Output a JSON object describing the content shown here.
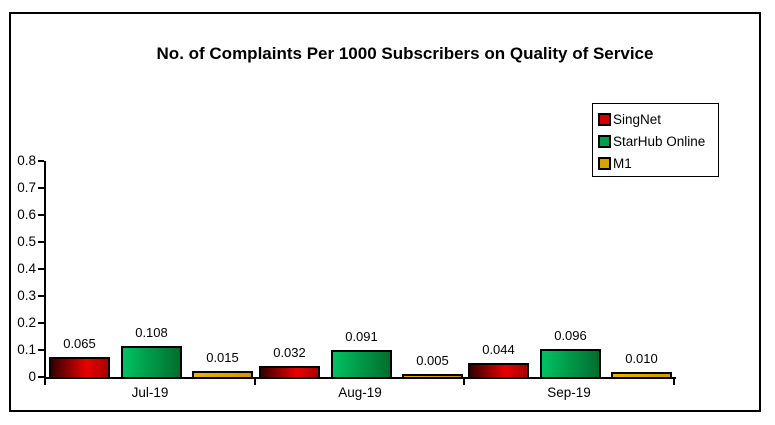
{
  "page": {
    "background": "#FFFFFF"
  },
  "chart_data": {
    "type": "bar",
    "title": "No. of Complaints Per 1000 Subscribers on Quality of Service",
    "categories": [
      "Jul-19",
      "Aug-19",
      "Sep-19"
    ],
    "series": [
      {
        "name": "SingNet",
        "values": [
          0.065,
          0.032,
          0.044
        ],
        "labels": [
          "0.065",
          "0.032",
          "0.044"
        ],
        "legend_color": "#D40000",
        "fill_from": "#330000",
        "fill_mid": "#E80000",
        "fill_to": "#A80000"
      },
      {
        "name": "StarHub Online",
        "values": [
          0.108,
          0.091,
          0.096
        ],
        "labels": [
          "0.108",
          "0.091",
          "0.096"
        ],
        "legend_color": "#00A14B",
        "fill_from": "#00C263",
        "fill_mid": "",
        "fill_to": "#006E2E"
      },
      {
        "name": "M1",
        "values": [
          0.015,
          0.005,
          0.01
        ],
        "labels": [
          "0.015",
          "0.005",
          "0.010"
        ],
        "legend_color": "#D9A300",
        "fill_from": "#EDB000",
        "fill_mid": "",
        "fill_to": "#D29600"
      }
    ],
    "ylim": [
      0,
      0.8
    ],
    "y_ticks": [
      "0.8",
      "0.7",
      "0.6",
      "0.5",
      "0.4",
      "0.3",
      "0.2",
      "0.1",
      "0"
    ],
    "xlabel": "",
    "ylabel": "",
    "grid": false,
    "legend_position": "top-right",
    "axis_color": "#000000"
  }
}
